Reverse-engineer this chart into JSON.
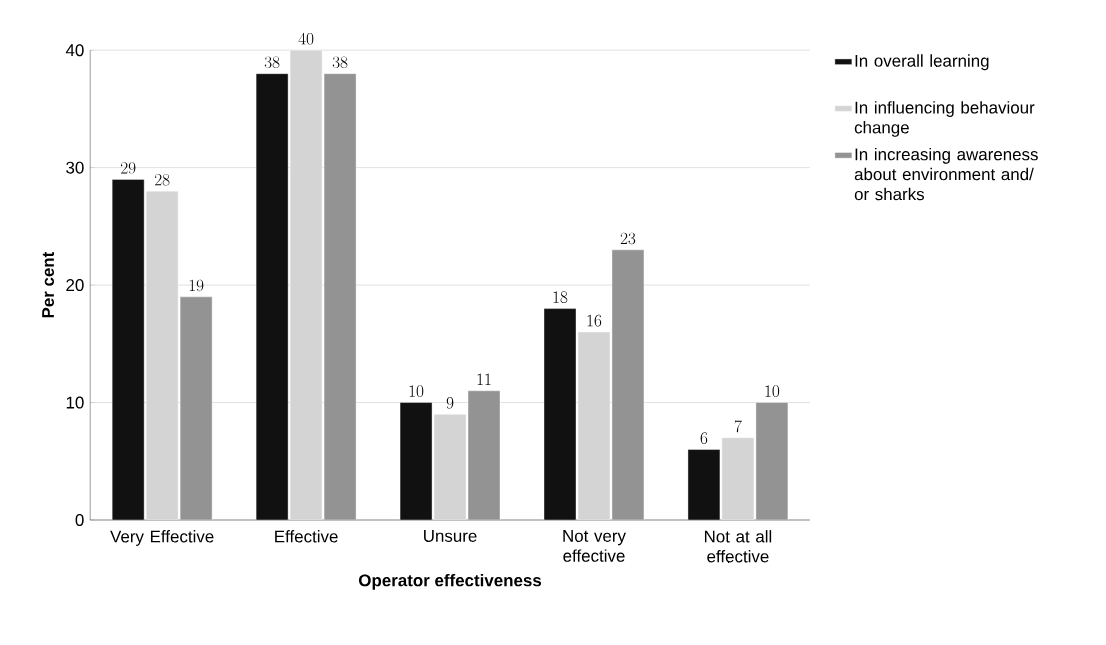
{
  "chart_data": {
    "type": "bar",
    "xlabel": "Operator effectiveness",
    "ylabel": "Per cent",
    "categories": [
      "Very Effective",
      "Effective",
      "Unsure",
      "Not very effective",
      "Not at all effective"
    ],
    "series": [
      {
        "name": "In overall learning",
        "color": "#111111",
        "values": [
          29,
          38,
          10,
          18,
          6
        ]
      },
      {
        "name": "In influencing behaviour change",
        "color": "#d4d4d4",
        "values": [
          28,
          40,
          9,
          16,
          7
        ]
      },
      {
        "name": "In increasing awareness about environment and/ or sharks",
        "color": "#939393",
        "values": [
          19,
          38,
          11,
          23,
          10
        ]
      }
    ],
    "ylim": [
      0,
      40
    ],
    "yticks": [
      0,
      10,
      20,
      30,
      40
    ],
    "grid": "y",
    "legend": "right",
    "data_labels": true
  }
}
